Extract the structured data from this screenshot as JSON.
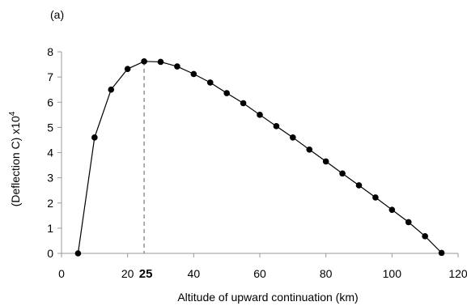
{
  "panel_label": "(a)",
  "chart_data": {
    "type": "line",
    "title": "",
    "xlabel": "Altitude of upward continuation (km)",
    "ylabel": "(Deflection C) x10",
    "ylabel_superscript": "4",
    "xlim": [
      0,
      120
    ],
    "ylim": [
      0,
      8
    ],
    "x_ticks": [
      "0",
      "20",
      "40",
      "60",
      "80",
      "100",
      "120"
    ],
    "y_ticks": [
      "0",
      "1",
      "2",
      "3",
      "4",
      "5",
      "6",
      "7",
      "8"
    ],
    "grid": false,
    "series": [
      {
        "x": [
          5,
          10,
          15,
          20,
          25,
          30,
          35,
          40,
          45,
          50,
          55,
          60,
          65,
          70,
          75,
          80,
          85,
          90,
          95,
          100,
          105,
          110,
          115
        ],
        "y": [
          0.0,
          4.6,
          6.5,
          7.32,
          7.62,
          7.6,
          7.42,
          7.12,
          6.78,
          6.36,
          5.96,
          5.5,
          5.05,
          4.6,
          4.12,
          3.65,
          3.17,
          2.7,
          2.22,
          1.73,
          1.24,
          0.68,
          0.02
        ]
      }
    ],
    "annotation": {
      "x": 25,
      "label": "25",
      "style": "dashed vertical line"
    },
    "colors": {
      "line": "#000000",
      "marker": "#000000",
      "dashed": "#777777"
    }
  }
}
